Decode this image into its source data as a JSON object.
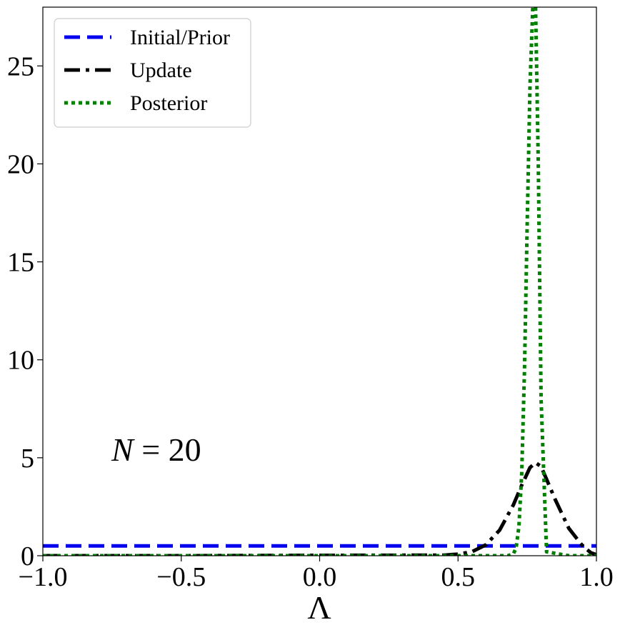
{
  "chart_data": {
    "type": "line",
    "title": "",
    "xlabel": "Λ",
    "ylabel": "",
    "xlim": [
      -1.0,
      1.0
    ],
    "ylim": [
      0,
      28
    ],
    "xticks": [
      -1.0,
      -0.5,
      0.0,
      0.5,
      1.0
    ],
    "xtick_labels": [
      "−1.0",
      "−0.5",
      "0.0",
      "0.5",
      "1.0"
    ],
    "yticks": [
      0,
      5,
      10,
      15,
      20,
      25
    ],
    "ytick_labels": [
      "0",
      "5",
      "10",
      "15",
      "20",
      "25"
    ],
    "grid": false,
    "legend_position": "top-left",
    "annotation": {
      "prefix": "N",
      "text": " = 20",
      "x": -0.75,
      "y": 5
    },
    "series": [
      {
        "name": "Initial/Prior",
        "style": "dashed",
        "color": "#0000ee",
        "x": [
          -1.0,
          1.0
        ],
        "y": [
          0.5,
          0.5
        ]
      },
      {
        "name": "Update",
        "style": "dashdot",
        "color": "#000000",
        "x": [
          -1.0,
          -0.5,
          0.0,
          0.45,
          0.5,
          0.55,
          0.6,
          0.65,
          0.7,
          0.73,
          0.76,
          0.78,
          0.8,
          0.82,
          0.85,
          0.9,
          0.95,
          0.98,
          1.0
        ],
        "y": [
          0.0,
          0.0,
          0.02,
          0.03,
          0.08,
          0.2,
          0.55,
          1.3,
          2.6,
          3.6,
          4.5,
          4.75,
          4.55,
          3.9,
          2.9,
          1.4,
          0.5,
          0.15,
          0.05
        ]
      },
      {
        "name": "Posterior",
        "style": "dotted",
        "color": "#007f00",
        "x": [
          -1.0,
          0.5,
          0.6,
          0.68,
          0.7,
          0.71,
          0.72,
          0.73,
          0.74,
          0.75,
          0.76,
          0.77,
          0.78,
          0.79,
          0.8,
          0.82,
          0.9,
          1.0
        ],
        "y": [
          0.0,
          0.0,
          0.0,
          0.0,
          0.1,
          0.4,
          1.5,
          4.2,
          9.5,
          17.0,
          24.0,
          28.0,
          28.0,
          20.0,
          8.0,
          0.2,
          0.0,
          0.0
        ]
      }
    ]
  }
}
